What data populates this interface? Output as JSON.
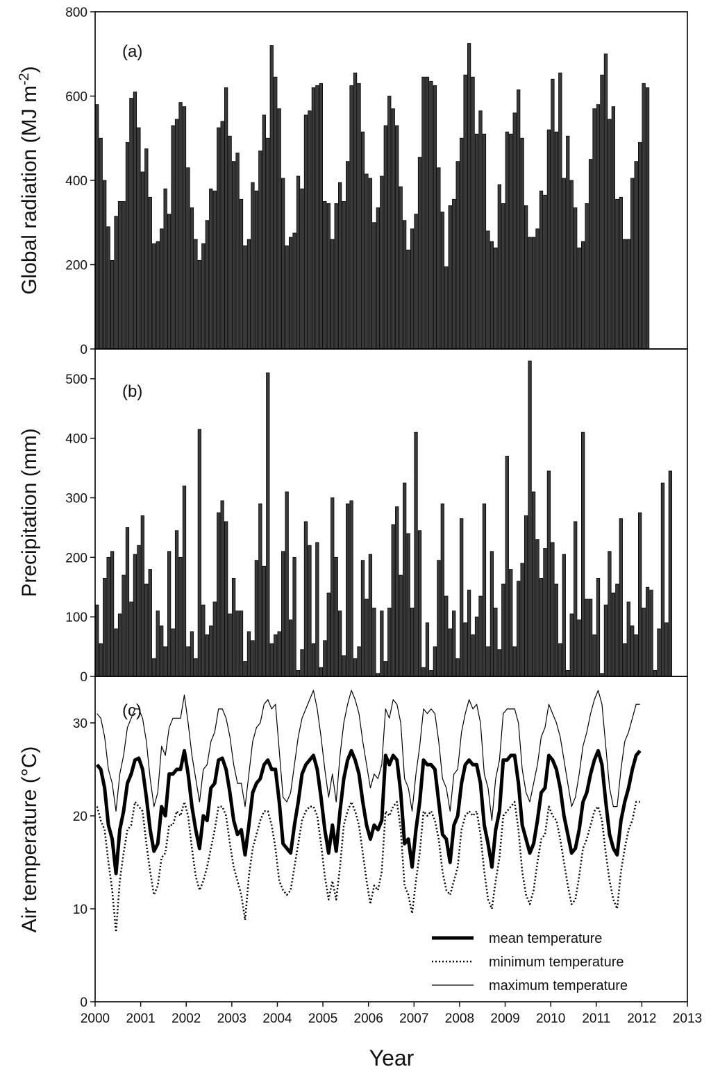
{
  "chart_data": [
    {
      "type": "bar",
      "panel_label": "(a)",
      "ylabel": "Global radiation (MJ m",
      "ylabel_sup": "-2",
      "ylabel_close": ")",
      "ylim": [
        0,
        800
      ],
      "yticks": [
        0,
        200,
        400,
        600,
        800
      ],
      "x_start": 2000,
      "values": [
        580,
        500,
        400,
        290,
        210,
        315,
        350,
        350,
        490,
        595,
        610,
        525,
        420,
        475,
        360,
        250,
        255,
        285,
        380,
        320,
        530,
        545,
        585,
        575,
        430,
        335,
        260,
        210,
        250,
        305,
        380,
        375,
        525,
        540,
        620,
        505,
        445,
        465,
        355,
        245,
        260,
        395,
        375,
        470,
        555,
        500,
        720,
        645,
        570,
        405,
        245,
        265,
        275,
        410,
        380,
        555,
        565,
        620,
        625,
        630,
        350,
        345,
        260,
        345,
        395,
        350,
        445,
        625,
        655,
        630,
        515,
        415,
        405,
        300,
        335,
        410,
        530,
        600,
        570,
        530,
        385,
        305,
        235,
        285,
        320,
        455,
        645,
        645,
        635,
        625,
        430,
        325,
        195,
        340,
        355,
        445,
        500,
        650,
        725,
        645,
        510,
        565,
        510,
        280,
        255,
        240,
        390,
        345,
        515,
        510,
        560,
        615,
        500,
        340,
        265,
        265,
        285,
        375,
        365,
        520,
        640,
        515,
        655,
        405,
        505,
        400,
        335,
        240,
        255,
        345,
        450,
        570,
        580,
        650,
        700,
        545,
        575,
        355,
        360,
        260,
        260,
        405,
        445,
        490,
        630,
        620
      ]
    },
    {
      "type": "bar",
      "panel_label": "(b)",
      "ylabel": "Precipitation (mm)",
      "ylim": [
        0,
        550
      ],
      "yticks": [
        0,
        100,
        200,
        300,
        400,
        500
      ],
      "x_start": 2000,
      "values": [
        120,
        55,
        165,
        200,
        210,
        80,
        105,
        170,
        250,
        125,
        205,
        220,
        270,
        155,
        180,
        30,
        110,
        85,
        50,
        210,
        80,
        245,
        200,
        320,
        50,
        75,
        30,
        415,
        120,
        70,
        85,
        125,
        275,
        295,
        260,
        105,
        165,
        110,
        110,
        25,
        75,
        60,
        195,
        290,
        185,
        510,
        55,
        70,
        75,
        210,
        310,
        95,
        200,
        10,
        45,
        260,
        220,
        55,
        225,
        15,
        60,
        140,
        300,
        200,
        110,
        35,
        290,
        295,
        30,
        50,
        195,
        130,
        205,
        115,
        5,
        110,
        25,
        115,
        255,
        285,
        170,
        325,
        240,
        115,
        410,
        245,
        15,
        90,
        10,
        50,
        195,
        290,
        135,
        80,
        110,
        30,
        265,
        90,
        145,
        70,
        100,
        135,
        290,
        50,
        210,
        115,
        45,
        155,
        370,
        180,
        50,
        160,
        190,
        270,
        530,
        310,
        230,
        165,
        215,
        345,
        225,
        155,
        55,
        205,
        10,
        105,
        260,
        95,
        410,
        130,
        130,
        70,
        165,
        5,
        120,
        210,
        140,
        155,
        265,
        55,
        125,
        85,
        70,
        275,
        115,
        150,
        145,
        10,
        80,
        325,
        90,
        345
      ]
    },
    {
      "type": "line",
      "panel_label": "(c)",
      "ylabel": "Air temperature (°C)",
      "ylim": [
        0,
        35
      ],
      "yticks": [
        0,
        10,
        20,
        30
      ],
      "x_start": 2000,
      "xlabel": "Year",
      "xticks": [
        2000,
        2001,
        2002,
        2003,
        2004,
        2005,
        2006,
        2007,
        2008,
        2009,
        2010,
        2011,
        2012,
        2013
      ],
      "legend_position": "bottom-right",
      "series": [
        {
          "name": "mean temperature",
          "values": [
            25.5,
            25.0,
            23.0,
            19.0,
            17.5,
            13.8,
            18.5,
            20.5,
            23.5,
            24.5,
            26.0,
            26.2,
            25.0,
            22.0,
            18.5,
            16.2,
            17.0,
            21.0,
            20.0,
            24.5,
            24.5,
            25.0,
            25.0,
            27.0,
            24.5,
            21.0,
            18.5,
            16.5,
            20.0,
            19.5,
            23.0,
            23.5,
            26.0,
            26.2,
            25.0,
            22.5,
            19.5,
            18.0,
            18.5,
            15.8,
            19.0,
            22.5,
            23.5,
            24.0,
            25.5,
            26.0,
            25.0,
            25.0,
            21.5,
            17.0,
            16.5,
            16.0,
            19.0,
            21.5,
            24.5,
            25.5,
            26.0,
            26.5,
            25.0,
            22.0,
            18.5,
            16.0,
            19.0,
            16.2,
            20.5,
            24.0,
            26.0,
            27.0,
            26.0,
            24.5,
            21.5,
            19.0,
            17.5,
            19.0,
            18.5,
            19.5,
            26.5,
            25.5,
            26.5,
            26.0,
            22.5,
            17.0,
            17.5,
            14.5,
            18.5,
            21.5,
            26.0,
            25.5,
            25.5,
            25.0,
            21.5,
            18.0,
            17.5,
            15.0,
            19.0,
            20.0,
            23.5,
            25.5,
            26.0,
            25.5,
            25.5,
            23.5,
            19.0,
            17.0,
            14.5,
            18.5,
            20.5,
            26.0,
            26.0,
            26.5,
            26.5,
            23.5,
            19.0,
            17.5,
            16.0,
            17.0,
            19.5,
            22.5,
            23.0,
            26.5,
            26.0,
            25.0,
            23.0,
            20.0,
            18.0,
            16.0,
            16.5,
            18.5,
            21.5,
            22.5,
            24.5,
            26.0,
            27.0,
            25.5,
            21.5,
            18.0,
            16.5,
            15.8,
            19.5,
            21.5,
            23.0,
            25.0,
            26.5,
            27.0
          ]
        },
        {
          "name": "minimum temperature",
          "values": [
            21.0,
            19.5,
            18.5,
            15.0,
            12.0,
            7.5,
            13.0,
            16.0,
            18.5,
            19.0,
            21.5,
            21.0,
            20.5,
            17.0,
            14.0,
            11.5,
            12.5,
            15.5,
            16.0,
            19.0,
            19.0,
            20.5,
            20.0,
            21.5,
            20.0,
            16.5,
            13.5,
            12.0,
            13.0,
            14.5,
            16.5,
            18.5,
            21.0,
            21.0,
            20.0,
            17.0,
            14.5,
            13.0,
            11.5,
            8.8,
            13.5,
            16.5,
            18.0,
            19.5,
            20.5,
            20.5,
            19.0,
            16.5,
            13.0,
            12.0,
            11.5,
            12.0,
            14.5,
            17.0,
            19.5,
            20.5,
            21.0,
            21.0,
            20.0,
            17.0,
            13.5,
            11.0,
            13.0,
            11.0,
            14.5,
            19.0,
            20.5,
            21.5,
            20.5,
            19.0,
            16.0,
            13.0,
            10.5,
            12.5,
            12.0,
            14.0,
            20.5,
            20.0,
            21.0,
            21.5,
            18.5,
            12.5,
            11.5,
            9.5,
            13.0,
            16.0,
            20.5,
            20.0,
            20.5,
            19.5,
            17.5,
            14.0,
            12.0,
            11.5,
            13.0,
            14.5,
            18.5,
            20.0,
            20.5,
            20.0,
            20.5,
            18.0,
            14.0,
            11.0,
            10.0,
            13.0,
            15.5,
            20.0,
            20.5,
            21.0,
            21.5,
            18.5,
            14.0,
            11.5,
            10.5,
            12.0,
            15.0,
            17.5,
            18.0,
            21.0,
            20.0,
            19.5,
            17.5,
            15.0,
            12.5,
            10.5,
            11.0,
            13.5,
            16.5,
            17.5,
            19.0,
            20.5,
            21.0,
            19.5,
            16.0,
            13.0,
            11.0,
            10.0,
            14.0,
            16.5,
            18.5,
            19.5,
            21.5,
            21.5
          ]
        },
        {
          "name": "maximum temperature",
          "values": [
            31.0,
            30.5,
            28.5,
            25.0,
            23.5,
            20.5,
            24.5,
            26.5,
            29.5,
            30.5,
            31.5,
            31.5,
            30.5,
            28.0,
            24.0,
            21.0,
            22.5,
            27.5,
            26.5,
            29.5,
            30.5,
            30.5,
            30.5,
            33.0,
            30.0,
            26.5,
            24.0,
            21.5,
            25.0,
            25.5,
            28.0,
            29.0,
            31.5,
            31.5,
            30.5,
            28.5,
            25.5,
            23.5,
            23.5,
            21.0,
            24.5,
            28.0,
            29.5,
            30.0,
            32.0,
            32.5,
            31.5,
            32.0,
            27.0,
            22.0,
            21.5,
            22.5,
            25.5,
            28.5,
            30.5,
            31.5,
            32.5,
            33.5,
            31.5,
            28.5,
            25.0,
            22.0,
            24.5,
            21.5,
            26.5,
            30.0,
            32.0,
            33.5,
            32.5,
            31.0,
            28.0,
            25.5,
            23.0,
            24.5,
            24.0,
            25.5,
            31.5,
            30.5,
            32.5,
            32.0,
            30.0,
            24.0,
            23.0,
            20.5,
            24.5,
            27.5,
            31.5,
            31.0,
            31.5,
            31.0,
            28.0,
            24.0,
            23.0,
            20.5,
            24.5,
            25.0,
            29.0,
            31.0,
            32.5,
            31.5,
            32.0,
            30.0,
            24.5,
            23.0,
            19.5,
            24.0,
            26.0,
            31.0,
            31.5,
            31.5,
            31.5,
            30.0,
            25.0,
            22.5,
            21.5,
            23.5,
            25.5,
            28.5,
            29.5,
            32.0,
            31.0,
            30.0,
            28.5,
            26.0,
            23.5,
            21.0,
            22.0,
            24.5,
            27.5,
            29.0,
            31.0,
            32.5,
            33.5,
            32.0,
            27.5,
            23.0,
            21.0,
            21.0,
            25.0,
            28.0,
            29.0,
            30.5,
            32.0,
            32.0
          ]
        }
      ]
    }
  ]
}
